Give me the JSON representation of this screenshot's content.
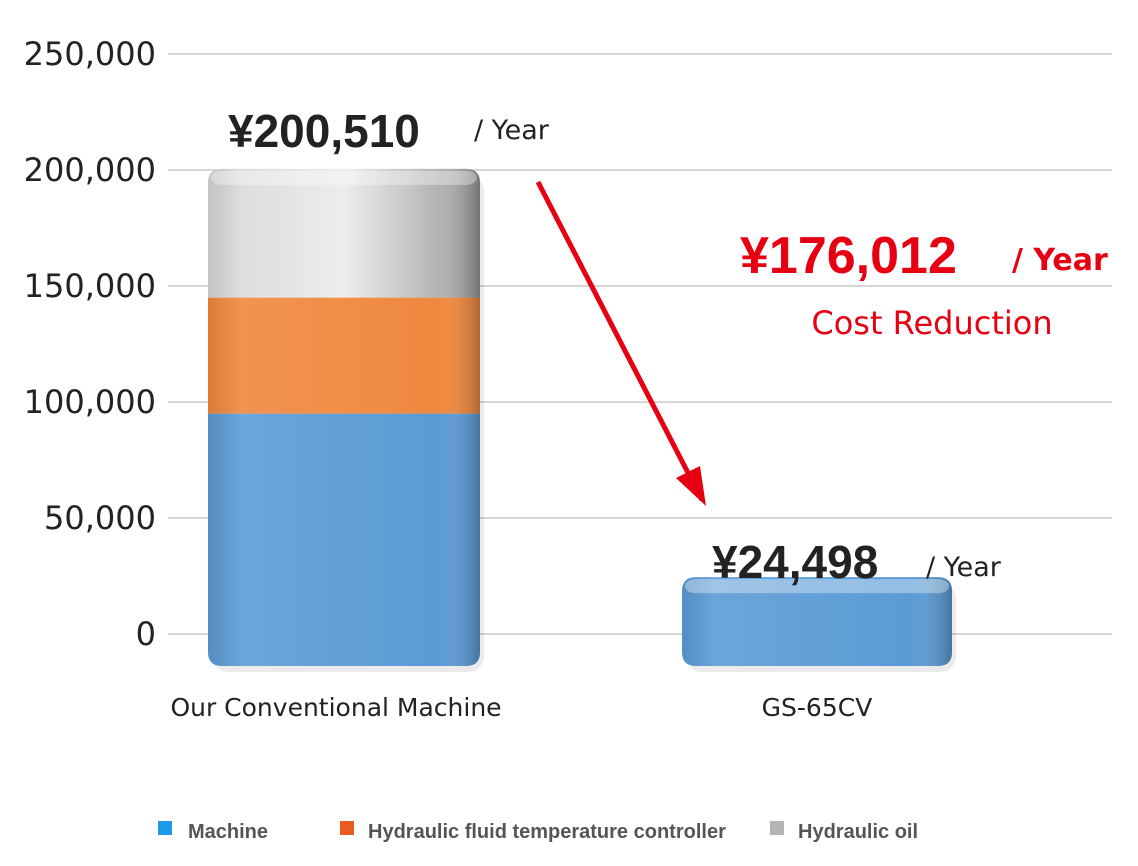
{
  "chart_data": {
    "type": "bar",
    "stacked": true,
    "categories": [
      "Our Conventional Machine",
      "GS-65CV"
    ],
    "series": [
      {
        "name": "Machine",
        "color": "#5b9bd5",
        "values": [
          95000,
          24498
        ]
      },
      {
        "name": "Hydraulic fluid temperature controller",
        "color": "#f0883e",
        "values": [
          50000,
          0
        ]
      },
      {
        "name": "Hydraulic oil",
        "color": "#c4c4c4",
        "values": [
          55510,
          0
        ]
      }
    ],
    "totals": [
      {
        "amount": "¥200,510",
        "suffix": "/ Year"
      },
      {
        "amount": "¥24,498",
        "suffix": "/ Year"
      }
    ],
    "reduction": {
      "amount": "¥176,012",
      "suffix": "/ Year",
      "label": "Cost Reduction",
      "color": "#e60012"
    },
    "yticks": [
      "0",
      "50,000",
      "100,000",
      "150,000",
      "200,000",
      "250,000"
    ],
    "ylim": [
      0,
      250000
    ],
    "grid": true,
    "legend_position": "bottom",
    "legend_colors": [
      "#1e9be8",
      "#ea5b1f",
      "#b4b4b4"
    ]
  }
}
